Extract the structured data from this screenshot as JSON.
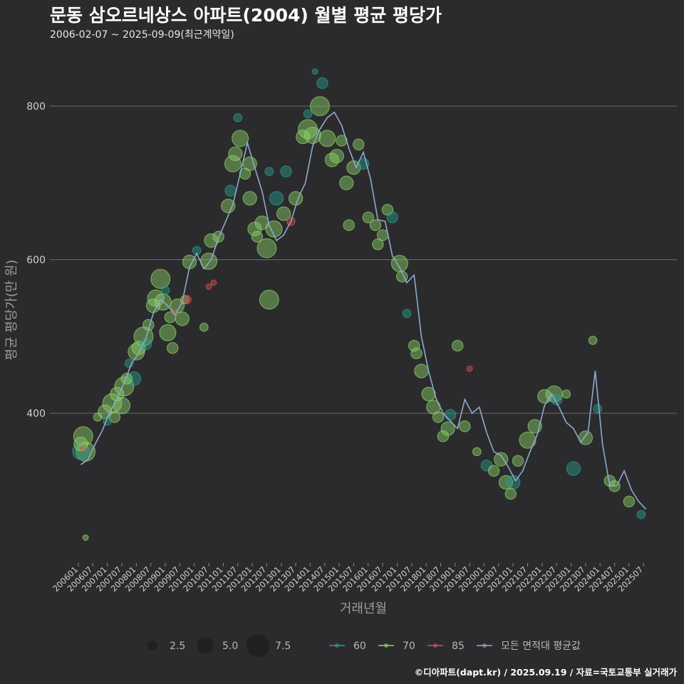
{
  "title": "문동 삼오르네상스 아파트(2004) 월별 평균 평당가",
  "subtitle": "2006-02-07 ~ 2025-09-09(최근계약일)",
  "credit": "©디아파트(dapt.kr) / 2025.09.19 / 자료=국토교통부 실거래가",
  "colors": {
    "background": "#2b2b2d",
    "grid": "#6a6a6a",
    "area_60": "#2a9d8f",
    "area_70": "#8ed36a",
    "area_85": "#d9534f",
    "avg_line": "#8fa9cc"
  },
  "chart_data": {
    "type": "scatter",
    "xlabel": "거래년월",
    "ylabel": "평균 평당가(만 원)",
    "ylim": [
      220,
      850
    ],
    "yticks": [
      400,
      600,
      800
    ],
    "x_start": "200601",
    "x_end": "202509",
    "x_tick_labels": [
      "200601",
      "200607",
      "200701",
      "200707",
      "200801",
      "200807",
      "200901",
      "200907",
      "201001",
      "201007",
      "201101",
      "201107",
      "201201",
      "201207",
      "201301",
      "201307",
      "201401",
      "201407",
      "201501",
      "201507",
      "201601",
      "201607",
      "201701",
      "201707",
      "201801",
      "201807",
      "201901",
      "201907",
      "202001",
      "202007",
      "202101",
      "202107",
      "202201",
      "202207",
      "202301",
      "202307",
      "202401",
      "202407",
      "202501",
      "202507"
    ],
    "legend": {
      "size_title": "",
      "size_entries": [
        {
          "label": "2.5",
          "value": 2.5
        },
        {
          "label": "5.0",
          "value": 5.0
        },
        {
          "label": "7.5",
          "value": 7.5
        }
      ],
      "color_entries": [
        {
          "label": "60",
          "key": "area_60"
        },
        {
          "label": "70",
          "key": "area_70"
        },
        {
          "label": "85",
          "key": "area_85"
        },
        {
          "label": "모든 면적대 평균값",
          "key": "avg_line"
        }
      ],
      "placement": "bottom"
    },
    "avg_line": [
      [
        "200602",
        333
      ],
      [
        "200605",
        340
      ],
      [
        "200608",
        360
      ],
      [
        "200611",
        378
      ],
      [
        "200702",
        402
      ],
      [
        "200705",
        418
      ],
      [
        "200708",
        440
      ],
      [
        "200711",
        465
      ],
      [
        "200802",
        478
      ],
      [
        "200805",
        498
      ],
      [
        "200808",
        530
      ],
      [
        "200811",
        548
      ],
      [
        "200902",
        540
      ],
      [
        "200905",
        528
      ],
      [
        "200908",
        545
      ],
      [
        "200911",
        590
      ],
      [
        "201002",
        608
      ],
      [
        "201005",
        588
      ],
      [
        "201008",
        600
      ],
      [
        "201011",
        628
      ],
      [
        "201102",
        650
      ],
      [
        "201105",
        672
      ],
      [
        "201108",
        712
      ],
      [
        "201111",
        752
      ],
      [
        "201202",
        720
      ],
      [
        "201205",
        690
      ],
      [
        "201208",
        645
      ],
      [
        "201211",
        625
      ],
      [
        "201302",
        632
      ],
      [
        "201305",
        650
      ],
      [
        "201308",
        680
      ],
      [
        "201311",
        700
      ],
      [
        "201402",
        748
      ],
      [
        "201405",
        770
      ],
      [
        "201408",
        785
      ],
      [
        "201411",
        792
      ],
      [
        "201502",
        775
      ],
      [
        "201505",
        745
      ],
      [
        "201508",
        720
      ],
      [
        "201511",
        740
      ],
      [
        "201602",
        705
      ],
      [
        "201605",
        652
      ],
      [
        "201608",
        650
      ],
      [
        "201611",
        605
      ],
      [
        "201702",
        590
      ],
      [
        "201705",
        570
      ],
      [
        "201708",
        580
      ],
      [
        "201711",
        500
      ],
      [
        "201802",
        455
      ],
      [
        "201805",
        420
      ],
      [
        "201808",
        400
      ],
      [
        "201811",
        390
      ],
      [
        "201902",
        380
      ],
      [
        "201905",
        418
      ],
      [
        "201908",
        400
      ],
      [
        "201911",
        408
      ],
      [
        "202002",
        375
      ],
      [
        "202005",
        350
      ],
      [
        "202008",
        345
      ],
      [
        "202011",
        330
      ],
      [
        "202102",
        312
      ],
      [
        "202105",
        325
      ],
      [
        "202108",
        350
      ],
      [
        "202111",
        372
      ],
      [
        "202202",
        410
      ],
      [
        "202205",
        425
      ],
      [
        "202208",
        408
      ],
      [
        "202211",
        388
      ],
      [
        "202302",
        380
      ],
      [
        "202305",
        362
      ],
      [
        "202308",
        375
      ],
      [
        "202311",
        455
      ],
      [
        "202402",
        360
      ],
      [
        "202405",
        305
      ],
      [
        "202408",
        306
      ],
      [
        "202411",
        325
      ],
      [
        "202502",
        300
      ],
      [
        "202505",
        285
      ],
      [
        "202508",
        275
      ]
    ],
    "points": [
      {
        "area": "60",
        "x": "200602",
        "y": 350,
        "count": 5
      },
      {
        "area": "70",
        "x": "200602",
        "y": 360,
        "count": 4
      },
      {
        "area": "70",
        "x": "200603",
        "y": 370,
        "count": 6
      },
      {
        "area": "70",
        "x": "200604",
        "y": 350,
        "count": 6
      },
      {
        "area": "70",
        "x": "200604",
        "y": 238,
        "count": 1
      },
      {
        "area": "85",
        "x": "200603",
        "y": 354,
        "count": 1
      },
      {
        "area": "70",
        "x": "200609",
        "y": 395,
        "count": 2
      },
      {
        "area": "70",
        "x": "200612",
        "y": 402,
        "count": 4
      },
      {
        "area": "60",
        "x": "200701",
        "y": 390,
        "count": 2
      },
      {
        "area": "70",
        "x": "200703",
        "y": 413,
        "count": 6
      },
      {
        "area": "70",
        "x": "200704",
        "y": 395,
        "count": 3
      },
      {
        "area": "70",
        "x": "200705",
        "y": 425,
        "count": 4
      },
      {
        "area": "70",
        "x": "200707",
        "y": 410,
        "count": 5
      },
      {
        "area": "70",
        "x": "200708",
        "y": 435,
        "count": 6
      },
      {
        "area": "70",
        "x": "200709",
        "y": 445,
        "count": 3
      },
      {
        "area": "60",
        "x": "200710",
        "y": 465,
        "count": 2
      },
      {
        "area": "60",
        "x": "200712",
        "y": 445,
        "count": 4
      },
      {
        "area": "70",
        "x": "200801",
        "y": 480,
        "count": 5
      },
      {
        "area": "70",
        "x": "200802",
        "y": 485,
        "count": 4
      },
      {
        "area": "70",
        "x": "200804",
        "y": 500,
        "count": 6
      },
      {
        "area": "60",
        "x": "200805",
        "y": 490,
        "count": 3
      },
      {
        "area": "70",
        "x": "200806",
        "y": 515,
        "count": 3
      },
      {
        "area": "70",
        "x": "200808",
        "y": 540,
        "count": 4
      },
      {
        "area": "70",
        "x": "200809",
        "y": 550,
        "count": 5
      },
      {
        "area": "70",
        "x": "200811",
        "y": 575,
        "count": 6
      },
      {
        "area": "70",
        "x": "200812",
        "y": 545,
        "count": 5
      },
      {
        "area": "60",
        "x": "200901",
        "y": 560,
        "count": 2
      },
      {
        "area": "70",
        "x": "200902",
        "y": 505,
        "count": 5
      },
      {
        "area": "70",
        "x": "200903",
        "y": 525,
        "count": 3
      },
      {
        "area": "70",
        "x": "200904",
        "y": 485,
        "count": 3
      },
      {
        "area": "85",
        "x": "200905",
        "y": 532,
        "count": 1
      },
      {
        "area": "70",
        "x": "200906",
        "y": 540,
        "count": 4
      },
      {
        "area": "70",
        "x": "200908",
        "y": 523,
        "count": 4
      },
      {
        "area": "70",
        "x": "200909",
        "y": 548,
        "count": 2
      },
      {
        "area": "70",
        "x": "200911",
        "y": 597,
        "count": 4
      },
      {
        "area": "85",
        "x": "200910",
        "y": 548,
        "count": 2
      },
      {
        "area": "60",
        "x": "201002",
        "y": 612,
        "count": 2
      },
      {
        "area": "70",
        "x": "201005",
        "y": 512,
        "count": 2
      },
      {
        "area": "70",
        "x": "201007",
        "y": 598,
        "count": 5
      },
      {
        "area": "70",
        "x": "201008",
        "y": 625,
        "count": 4
      },
      {
        "area": "85",
        "x": "201007",
        "y": 565,
        "count": 1
      },
      {
        "area": "85",
        "x": "201009",
        "y": 570,
        "count": 1
      },
      {
        "area": "70",
        "x": "201011",
        "y": 630,
        "count": 3
      },
      {
        "area": "70",
        "x": "201103",
        "y": 670,
        "count": 4
      },
      {
        "area": "60",
        "x": "201104",
        "y": 690,
        "count": 3
      },
      {
        "area": "70",
        "x": "201105",
        "y": 725,
        "count": 5
      },
      {
        "area": "70",
        "x": "201106",
        "y": 738,
        "count": 4
      },
      {
        "area": "60",
        "x": "201107",
        "y": 785,
        "count": 2
      },
      {
        "area": "70",
        "x": "201108",
        "y": 758,
        "count": 5
      },
      {
        "area": "70",
        "x": "201110",
        "y": 712,
        "count": 3
      },
      {
        "area": "70",
        "x": "201112",
        "y": 725,
        "count": 4
      },
      {
        "area": "70",
        "x": "201112",
        "y": 680,
        "count": 4
      },
      {
        "area": "70",
        "x": "201202",
        "y": 640,
        "count": 4
      },
      {
        "area": "70",
        "x": "201203",
        "y": 630,
        "count": 3
      },
      {
        "area": "70",
        "x": "201205",
        "y": 648,
        "count": 4
      },
      {
        "area": "70",
        "x": "201207",
        "y": 615,
        "count": 6
      },
      {
        "area": "70",
        "x": "201208",
        "y": 548,
        "count": 6
      },
      {
        "area": "60",
        "x": "201208",
        "y": 715,
        "count": 2
      },
      {
        "area": "70",
        "x": "201210",
        "y": 640,
        "count": 5
      },
      {
        "area": "60",
        "x": "201211",
        "y": 680,
        "count": 4
      },
      {
        "area": "70",
        "x": "201302",
        "y": 660,
        "count": 4
      },
      {
        "area": "60",
        "x": "201303",
        "y": 715,
        "count": 3
      },
      {
        "area": "85",
        "x": "201305",
        "y": 650,
        "count": 2
      },
      {
        "area": "70",
        "x": "201307",
        "y": 680,
        "count": 4
      },
      {
        "area": "70",
        "x": "201310",
        "y": 760,
        "count": 4
      },
      {
        "area": "70",
        "x": "201312",
        "y": 770,
        "count": 6
      },
      {
        "area": "60",
        "x": "201312",
        "y": 790,
        "count": 2
      },
      {
        "area": "70",
        "x": "201402",
        "y": 762,
        "count": 5
      },
      {
        "area": "70",
        "x": "201405",
        "y": 800,
        "count": 6
      },
      {
        "area": "60",
        "x": "201403",
        "y": 845,
        "count": 1
      },
      {
        "area": "60",
        "x": "201406",
        "y": 830,
        "count": 3
      },
      {
        "area": "70",
        "x": "201408",
        "y": 758,
        "count": 5
      },
      {
        "area": "70",
        "x": "201410",
        "y": 730,
        "count": 4
      },
      {
        "area": "70",
        "x": "201412",
        "y": 735,
        "count": 4
      },
      {
        "area": "70",
        "x": "201502",
        "y": 755,
        "count": 3
      },
      {
        "area": "70",
        "x": "201504",
        "y": 700,
        "count": 4
      },
      {
        "area": "70",
        "x": "201505",
        "y": 645,
        "count": 3
      },
      {
        "area": "70",
        "x": "201507",
        "y": 720,
        "count": 4
      },
      {
        "area": "70",
        "x": "201509",
        "y": 750,
        "count": 3
      },
      {
        "area": "60",
        "x": "201511",
        "y": 725,
        "count": 3
      },
      {
        "area": "70",
        "x": "201601",
        "y": 655,
        "count": 3
      },
      {
        "area": "70",
        "x": "201604",
        "y": 645,
        "count": 3
      },
      {
        "area": "70",
        "x": "201605",
        "y": 620,
        "count": 3
      },
      {
        "area": "70",
        "x": "201607",
        "y": 632,
        "count": 3
      },
      {
        "area": "70",
        "x": "201609",
        "y": 665,
        "count": 3
      },
      {
        "area": "60",
        "x": "201611",
        "y": 655,
        "count": 3
      },
      {
        "area": "70",
        "x": "201702",
        "y": 595,
        "count": 5
      },
      {
        "area": "70",
        "x": "201703",
        "y": 578,
        "count": 3
      },
      {
        "area": "60",
        "x": "201705",
        "y": 530,
        "count": 2
      },
      {
        "area": "70",
        "x": "201708",
        "y": 488,
        "count": 3
      },
      {
        "area": "70",
        "x": "201709",
        "y": 478,
        "count": 3
      },
      {
        "area": "70",
        "x": "201711",
        "y": 455,
        "count": 4
      },
      {
        "area": "70",
        "x": "201802",
        "y": 425,
        "count": 4
      },
      {
        "area": "70",
        "x": "201804",
        "y": 408,
        "count": 4
      },
      {
        "area": "70",
        "x": "201806",
        "y": 395,
        "count": 3
      },
      {
        "area": "70",
        "x": "201808",
        "y": 370,
        "count": 3
      },
      {
        "area": "70",
        "x": "201810",
        "y": 380,
        "count": 4
      },
      {
        "area": "60",
        "x": "201811",
        "y": 398,
        "count": 3
      },
      {
        "area": "70",
        "x": "201902",
        "y": 488,
        "count": 3
      },
      {
        "area": "70",
        "x": "201905",
        "y": 383,
        "count": 3
      },
      {
        "area": "85",
        "x": "201907",
        "y": 458,
        "count": 1
      },
      {
        "area": "70",
        "x": "201910",
        "y": 350,
        "count": 2
      },
      {
        "area": "60",
        "x": "202002",
        "y": 332,
        "count": 3
      },
      {
        "area": "70",
        "x": "202005",
        "y": 325,
        "count": 3
      },
      {
        "area": "70",
        "x": "202008",
        "y": 340,
        "count": 4
      },
      {
        "area": "70",
        "x": "202010",
        "y": 310,
        "count": 4
      },
      {
        "area": "70",
        "x": "202012",
        "y": 295,
        "count": 3
      },
      {
        "area": "60",
        "x": "202101",
        "y": 310,
        "count": 4
      },
      {
        "area": "70",
        "x": "202103",
        "y": 338,
        "count": 3
      },
      {
        "area": "70",
        "x": "202107",
        "y": 365,
        "count": 5
      },
      {
        "area": "70",
        "x": "202110",
        "y": 383,
        "count": 4
      },
      {
        "area": "70",
        "x": "202202",
        "y": 422,
        "count": 4
      },
      {
        "area": "70",
        "x": "202206",
        "y": 425,
        "count": 5
      },
      {
        "area": "60",
        "x": "202207",
        "y": 418,
        "count": 3
      },
      {
        "area": "70",
        "x": "202211",
        "y": 425,
        "count": 2
      },
      {
        "area": "60",
        "x": "202302",
        "y": 328,
        "count": 4
      },
      {
        "area": "70",
        "x": "202307",
        "y": 368,
        "count": 4
      },
      {
        "area": "70",
        "x": "202310",
        "y": 495,
        "count": 2
      },
      {
        "area": "60",
        "x": "202312",
        "y": 406,
        "count": 2
      },
      {
        "area": "70",
        "x": "202405",
        "y": 312,
        "count": 3
      },
      {
        "area": "70",
        "x": "202407",
        "y": 305,
        "count": 3
      },
      {
        "area": "70",
        "x": "202501",
        "y": 285,
        "count": 3
      },
      {
        "area": "60",
        "x": "202506",
        "y": 268,
        "count": 2
      }
    ]
  }
}
